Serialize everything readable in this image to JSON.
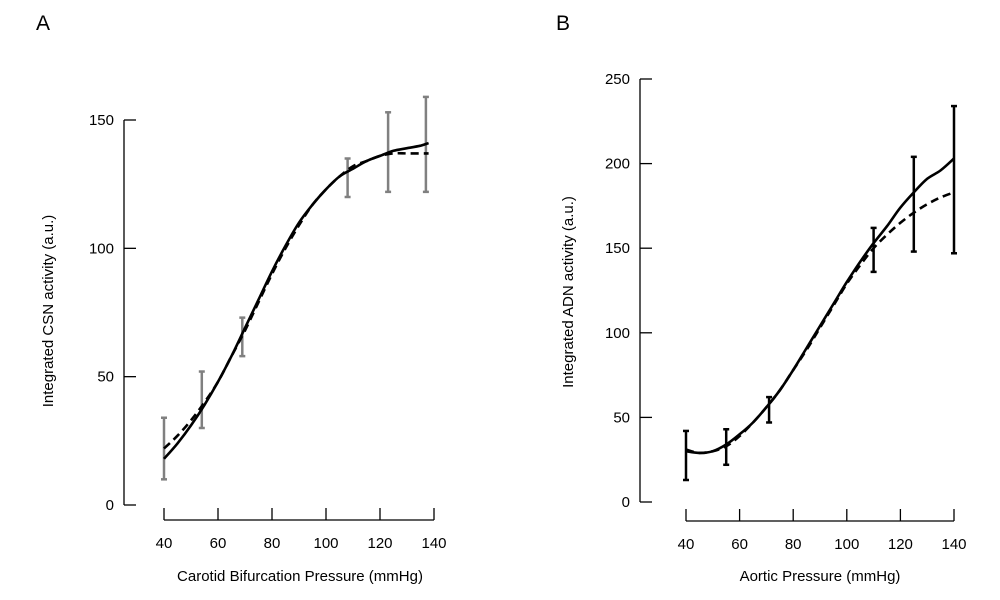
{
  "chart_data": [
    {
      "type": "line",
      "panel_label": "A",
      "title": "",
      "xlabel": "Carotid Bifurcation Pressure (mmHg)",
      "ylabel": "Integrated CSN activity (a.u.)",
      "xlim": [
        40,
        140
      ],
      "ylim": [
        0,
        150
      ],
      "xticks": [
        40,
        60,
        80,
        100,
        120,
        140
      ],
      "yticks": [
        0,
        50,
        100,
        150
      ],
      "errorbar_color": "#808080",
      "x": [
        40,
        45,
        50,
        55,
        60,
        65,
        70,
        75,
        80,
        85,
        90,
        95,
        100,
        105,
        110,
        115,
        120,
        125,
        130,
        135,
        138
      ],
      "series": [
        {
          "style": "solid",
          "values": [
            18,
            24,
            31,
            39,
            48,
            58,
            69,
            80,
            91,
            101,
            110,
            117,
            123,
            128,
            131,
            134,
            136,
            138,
            139,
            140,
            141
          ]
        },
        {
          "style": "dashed",
          "values": [
            22,
            27,
            33,
            40,
            48,
            58,
            68,
            79,
            90,
            100,
            109,
            117,
            123,
            128,
            132,
            134,
            136,
            137,
            137,
            137,
            137
          ]
        }
      ],
      "errorbars": [
        {
          "x": 40,
          "low": 10,
          "high": 34
        },
        {
          "x": 54,
          "low": 30,
          "high": 52
        },
        {
          "x": 69,
          "low": 58,
          "high": 73
        },
        {
          "x": 108,
          "low": 120,
          "high": 135
        },
        {
          "x": 123,
          "low": 122,
          "high": 153
        },
        {
          "x": 137,
          "low": 122,
          "high": 159
        }
      ]
    },
    {
      "type": "line",
      "panel_label": "B",
      "title": "",
      "xlabel": "Aortic Pressure (mmHg)",
      "ylabel": "Integrated ADN activity (a.u.)",
      "xlim": [
        40,
        140
      ],
      "ylim": [
        0,
        250
      ],
      "xticks": [
        40,
        60,
        80,
        100,
        120,
        140
      ],
      "yticks": [
        0,
        50,
        100,
        150,
        200,
        250
      ],
      "errorbar_color": "#000000",
      "x": [
        40,
        45,
        50,
        55,
        60,
        65,
        70,
        75,
        80,
        85,
        90,
        95,
        100,
        105,
        110,
        115,
        120,
        125,
        130,
        135,
        140
      ],
      "series": [
        {
          "style": "solid",
          "values": [
            30,
            29,
            30,
            34,
            40,
            47,
            56,
            66,
            78,
            91,
            104,
            117,
            130,
            142,
            153,
            163,
            174,
            183,
            191,
            196,
            203
          ]
        },
        {
          "style": "dashed",
          "values": [
            31,
            29,
            30,
            33,
            39,
            47,
            56,
            66,
            78,
            90,
            103,
            116,
            129,
            140,
            150,
            158,
            165,
            171,
            176,
            180,
            183
          ]
        }
      ],
      "errorbars": [
        {
          "x": 40,
          "low": 13,
          "high": 42
        },
        {
          "x": 55,
          "low": 22,
          "high": 43
        },
        {
          "x": 71,
          "low": 47,
          "high": 62
        },
        {
          "x": 110,
          "low": 136,
          "high": 162
        },
        {
          "x": 125,
          "low": 148,
          "high": 204
        },
        {
          "x": 140,
          "low": 147,
          "high": 234
        }
      ]
    }
  ]
}
